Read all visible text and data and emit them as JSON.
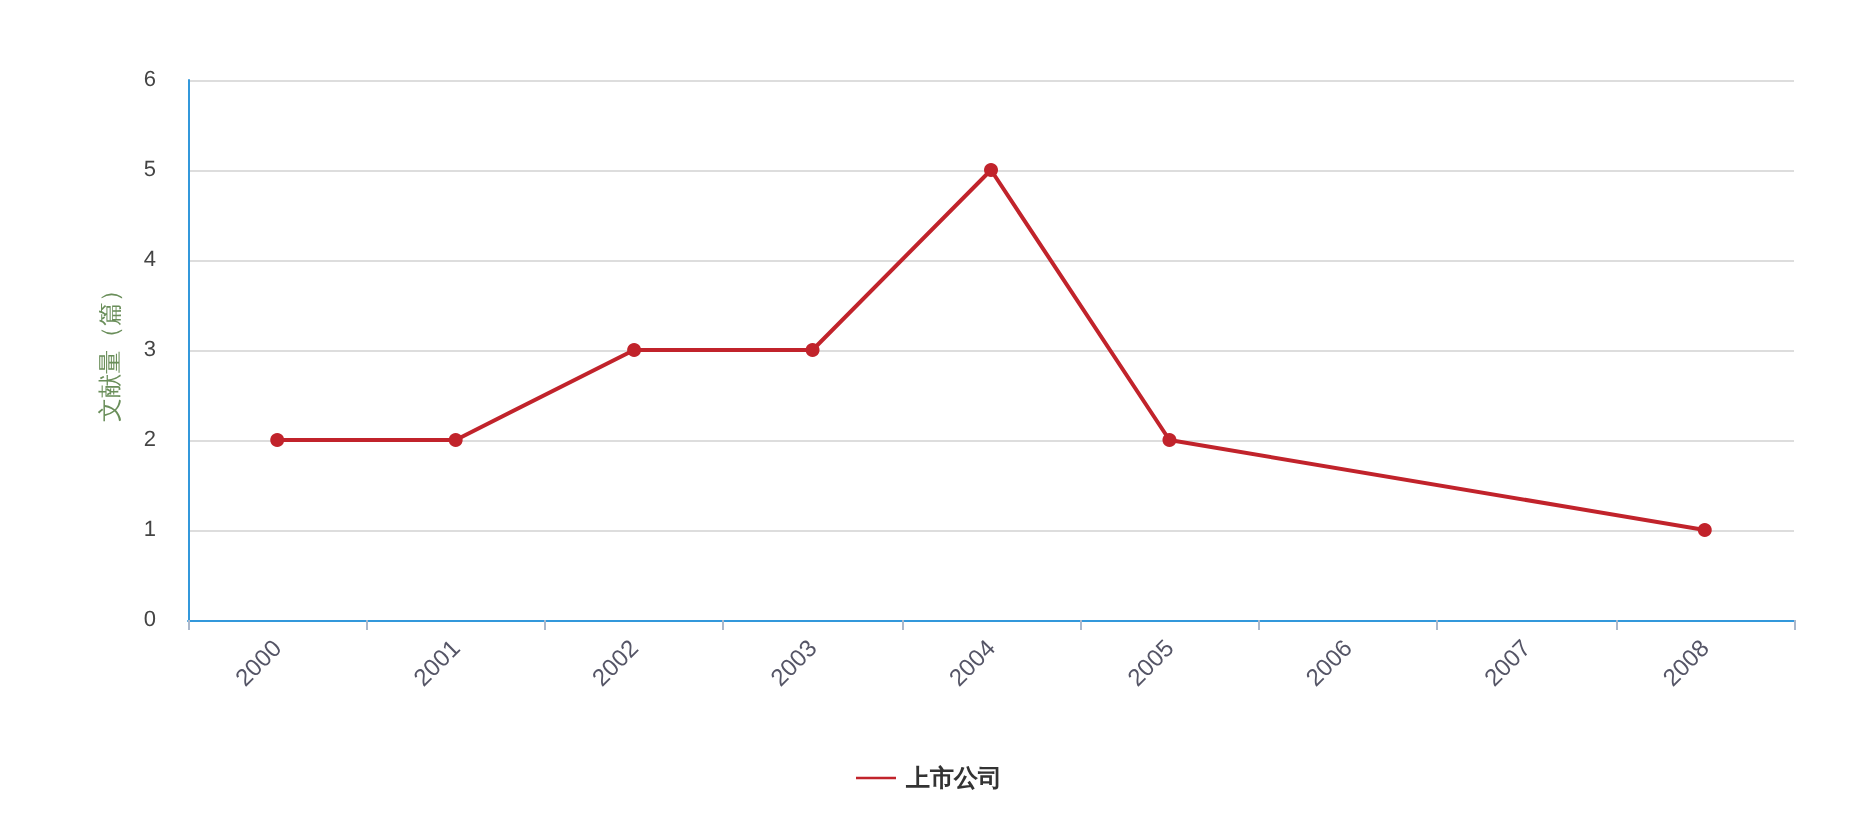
{
  "chart_data": {
    "type": "line",
    "ylabel": "文献量（篇）",
    "categories": [
      "2000",
      "2001",
      "2002",
      "2003",
      "2004",
      "2005",
      "2006",
      "2007",
      "2008"
    ],
    "series": [
      {
        "name": "上市公司",
        "color": "#c1232b",
        "values": [
          2,
          2,
          3,
          3,
          5,
          2,
          null,
          null,
          1
        ]
      }
    ],
    "ylim": [
      0,
      6
    ],
    "yticks": [
      0,
      1,
      2,
      3,
      4,
      5,
      6
    ],
    "grid": "y",
    "legend": "bottom",
    "marker": "circle",
    "line_style": "solid"
  }
}
